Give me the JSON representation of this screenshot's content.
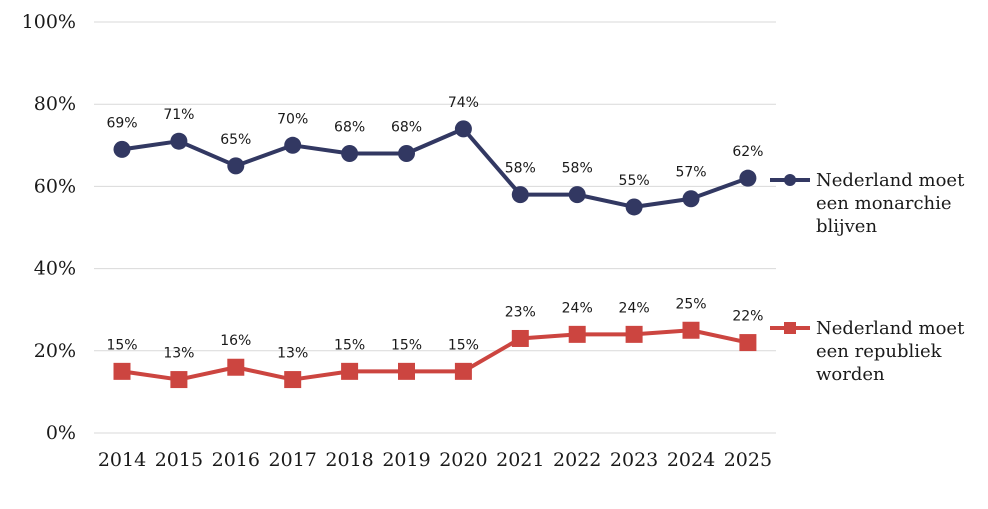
{
  "chart_data": {
    "type": "line",
    "title": "",
    "xlabel": "",
    "ylabel": "",
    "categories": [
      "2014",
      "2015",
      "2016",
      "2017",
      "2018",
      "2019",
      "2020",
      "2021",
      "2022",
      "2023",
      "2024",
      "2025"
    ],
    "ylim": [
      0,
      100
    ],
    "yticks": [
      "0%",
      "20%",
      "40%",
      "60%",
      "80%",
      "100%"
    ],
    "grid": true,
    "legend_position": "right, next to each line end",
    "series": [
      {
        "name": "Nederland moet een monarchie blijven",
        "legend_lines": [
          "Nederland moet",
          "een monarchie",
          "blijven"
        ],
        "values": [
          69,
          71,
          65,
          70,
          68,
          68,
          74,
          58,
          58,
          55,
          57,
          62
        ],
        "labels": [
          "69%",
          "71%",
          "65%",
          "70%",
          "68%",
          "68%",
          "74%",
          "58%",
          "58%",
          "55%",
          "57%",
          "62%"
        ],
        "color": "#323862",
        "marker": "circle"
      },
      {
        "name": "Nederland moet een republiek worden",
        "legend_lines": [
          "Nederland moet",
          "een republiek",
          "worden"
        ],
        "values": [
          15,
          13,
          16,
          13,
          15,
          15,
          15,
          23,
          24,
          24,
          25,
          22
        ],
        "labels": [
          "15%",
          "13%",
          "16%",
          "13%",
          "15%",
          "15%",
          "15%",
          "23%",
          "24%",
          "24%",
          "25%",
          "22%"
        ],
        "color": "#cc4540",
        "marker": "square"
      }
    ]
  }
}
